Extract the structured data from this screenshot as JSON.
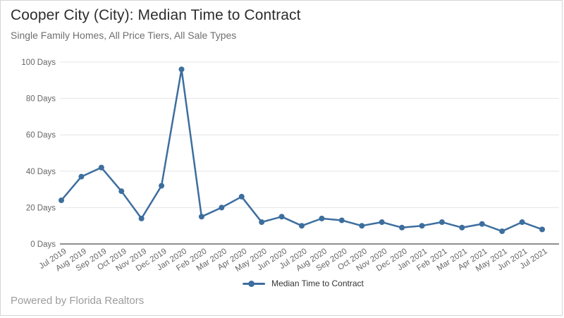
{
  "page": {
    "title": "Cooper City (City): Median Time to Contract",
    "subtitle": "Single Family Homes, All Price Tiers, All Sale Types",
    "footer": "Powered by Florida Realtors"
  },
  "legend": {
    "label": "Median Time to Contract"
  },
  "colors": {
    "series": "#3d6e9e",
    "grid": "#e4e4e4",
    "axis": "#8f8f8f",
    "tick_label": "#666666",
    "title": "#2d2d2d",
    "subtitle": "#6f6f6f",
    "footer": "#9c9c9c",
    "legend_text": "#333333",
    "background": "#ffffff"
  },
  "chart_data": {
    "type": "line",
    "title": "Cooper City (City): Median Time to Contract",
    "subtitle": "Single Family Homes, All Price Tiers, All Sale Types",
    "categories": [
      "Jul 2019",
      "Aug 2019",
      "Sep 2019",
      "Oct 2019",
      "Nov 2019",
      "Dec 2019",
      "Jan 2020",
      "Feb 2020",
      "Mar 2020",
      "Apr 2020",
      "May 2020",
      "Jun 2020",
      "Jul 2020",
      "Aug 2020",
      "Sep 2020",
      "Oct 2020",
      "Nov 2020",
      "Dec 2020",
      "Jan 2021",
      "Feb 2021",
      "Mar 2021",
      "Apr 2021",
      "May 2021",
      "Jun 2021",
      "Jul 2021"
    ],
    "series": [
      {
        "name": "Median Time to Contract",
        "values": [
          24,
          37,
          42,
          29,
          14,
          32,
          96,
          15,
          20,
          26,
          12,
          15,
          10,
          14,
          13,
          10,
          12,
          9,
          10,
          12,
          9,
          11,
          7,
          12,
          8
        ]
      }
    ],
    "ylim": [
      0,
      100
    ],
    "ytick_values": [
      0,
      20,
      40,
      60,
      80,
      100
    ],
    "ytick_labels": [
      "0 Days",
      "20 Days",
      "40 Days",
      "60 Days",
      "80 Days",
      "100 Days"
    ],
    "xlabel": "",
    "ylabel": "",
    "grid": true,
    "legend_position": "bottom-center",
    "x_label_rotation": -33
  }
}
